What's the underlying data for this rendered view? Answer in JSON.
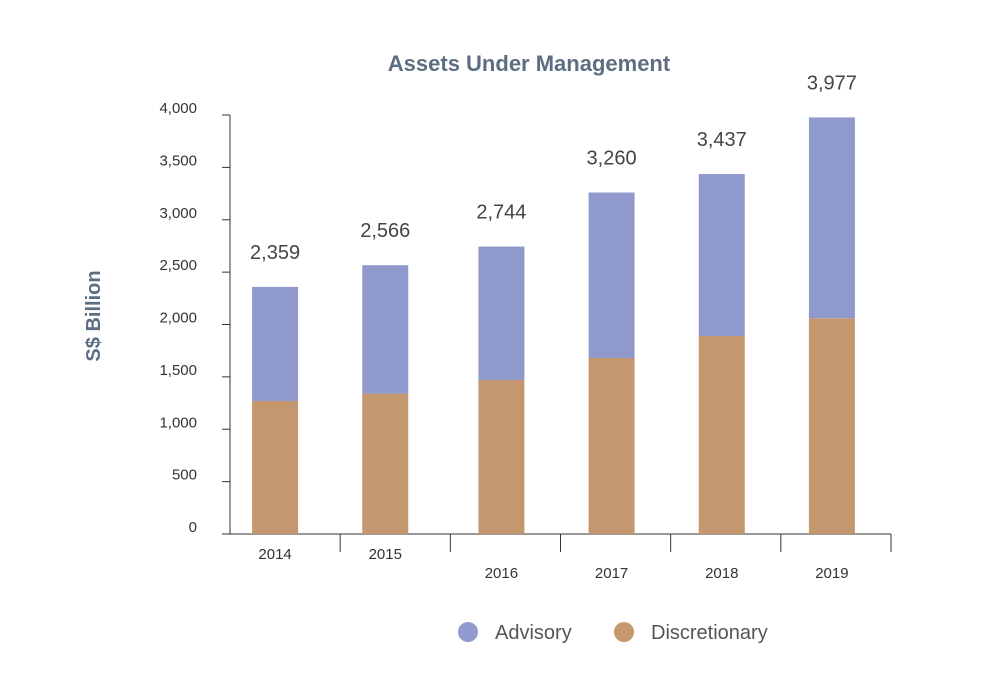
{
  "chart_data": {
    "type": "bar",
    "stacked": true,
    "title": "Assets Under Management",
    "xlabel": "",
    "ylabel": "S$ Billion",
    "ylim": [
      0,
      4000
    ],
    "yticks": [
      0,
      500,
      1000,
      1500,
      2000,
      2500,
      3000,
      3500,
      4000
    ],
    "ytick_labels": [
      "0",
      "500",
      "1,000",
      "1,500",
      "2,000",
      "2,500",
      "3,000",
      "3,500",
      "4,000"
    ],
    "categories": [
      "2014",
      "2015",
      "2016",
      "2017",
      "2018",
      "2019"
    ],
    "series": [
      {
        "name": "Discretionary",
        "color": "#c4976e",
        "values": [
          1270,
          1340,
          1470,
          1680,
          1890,
          2060
        ]
      },
      {
        "name": "Advisory",
        "color": "#9099cc",
        "values": [
          1089,
          1226,
          1274,
          1580,
          1547,
          1917
        ]
      }
    ],
    "totals": [
      "2,359",
      "2,566",
      "2,744",
      "3,260",
      "3,437",
      "3,977"
    ],
    "legend": {
      "position": "bottom",
      "order": [
        "Advisory",
        "Discretionary"
      ]
    },
    "grid": false
  }
}
